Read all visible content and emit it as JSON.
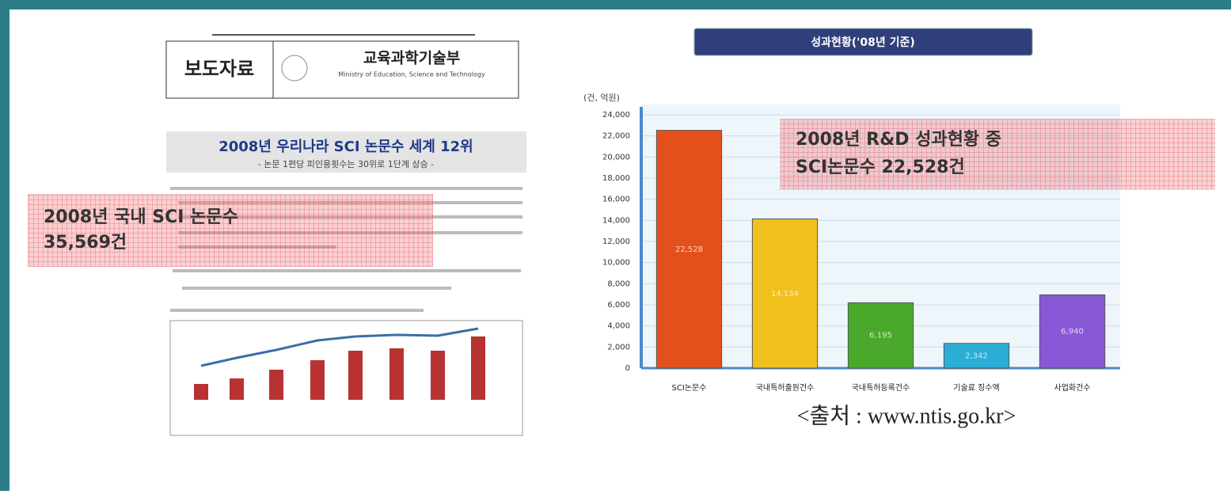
{
  "document": {
    "badge": "보도자료",
    "ministry": "교육과학기술부",
    "ministry_en": "Ministry of Education, Science and Technology",
    "headline": "2008년 우리나라 SCI 논문수 세계 12위",
    "subheadline": "- 논문 1편당 피인용횟수는 30위로 1단계 상승 -",
    "annotation": [
      "2008년 국내 SCI 논문수",
      "35,569건"
    ]
  },
  "chart_data": {
    "type": "bar",
    "title": "성과현황('08년 기준)",
    "y_label": "(건, 억원)",
    "categories": [
      "SCI논문수",
      "국내특허출원건수",
      "국내특허등록건수",
      "기술료 징수액",
      "사업화건수"
    ],
    "values": [
      22528,
      14134,
      6195,
      2342,
      6940
    ],
    "value_labels": [
      "22,528",
      "14,134",
      "6,195",
      "2,342",
      "6,940"
    ],
    "colors": [
      "#e4501c",
      "#f0c01c",
      "#4aa82a",
      "#2aaed6",
      "#8858d6"
    ],
    "ylim": [
      0,
      24000
    ],
    "yticks": [
      0,
      {
        "value": 2000,
        "label": "2,000"
      },
      {
        "value": 4000,
        "label": "4,000"
      },
      {
        "value": 6000,
        "label": "6,000"
      },
      {
        "value": 8000,
        "label": "8,000"
      },
      {
        "value": 10000,
        "label": "10,000"
      },
      {
        "value": 12000,
        "label": "12,000"
      },
      {
        "value": 14000,
        "label": "14,000"
      },
      {
        "value": 16000,
        "label": "16,000"
      },
      {
        "value": 18000,
        "label": "18,000"
      },
      {
        "value": 20000,
        "label": "20,000"
      },
      {
        "value": 22000,
        "label": "22,000"
      },
      {
        "value": 24000,
        "label": "24,000"
      }
    ],
    "grid": true,
    "annotation": [
      "2008년 R&D 성과현황 중",
      "SCI논문수 22,528건"
    ],
    "source": "<출처 : www.ntis.go.kr>"
  }
}
